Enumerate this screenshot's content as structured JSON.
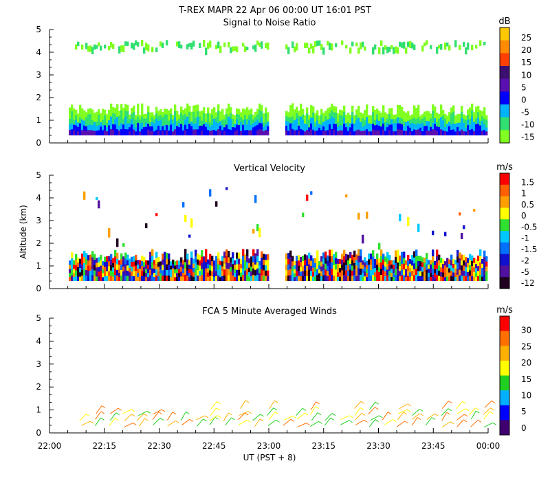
{
  "header": {
    "title": "T-REX  MAPR 22 Apr 06  00:00 UT  16:01  PST"
  },
  "chart_data": [
    {
      "type": "heatmap",
      "title": "Signal to Noise Ratio",
      "ylabel": "",
      "ylim": [
        0,
        5
      ],
      "yticks": [
        "0",
        "1",
        "2",
        "3",
        "4",
        "5"
      ],
      "colorbar": {
        "unit": "dB",
        "labels": [
          "25",
          "20",
          "15",
          "10",
          "5",
          "0",
          "-5",
          "-10",
          "-15"
        ],
        "colors": [
          "#ffc800",
          "#ff8c00",
          "#ff4000",
          "#3c1070",
          "#5a10b0",
          "#0000ff",
          "#00b4ff",
          "#30e070",
          "#80ff20"
        ]
      }
    },
    {
      "type": "heatmap",
      "title": "Vertical Velocity",
      "ylabel": "Altitude (km)",
      "ylim": [
        0,
        5
      ],
      "yticks": [
        "0",
        "1",
        "2",
        "3",
        "4",
        "5"
      ],
      "colorbar": {
        "unit": "m/s",
        "labels": [
          "1.5",
          "1",
          "0.5",
          "0",
          "-0.5",
          "-1",
          "-1.5",
          "-2",
          "-5",
          "-12"
        ],
        "colors": [
          "#ff0000",
          "#ff6000",
          "#ffa000",
          "#ffff00",
          "#30e030",
          "#00c8ff",
          "#0070ff",
          "#1010d0",
          "#5010a0",
          "#200020"
        ]
      }
    },
    {
      "type": "scatter",
      "title": "FCA 5 Minute Averaged Winds",
      "ylabel": "",
      "xlabel": "UT  (PST + 8)",
      "ylim": [
        0,
        5
      ],
      "yticks": [
        "0",
        "1",
        "2",
        "3",
        "4",
        "5"
      ],
      "xticks": [
        "22:00",
        "22:15",
        "22:30",
        "22:45",
        "23:00",
        "23:15",
        "23:30",
        "23:45",
        "00:00"
      ],
      "colorbar": {
        "unit": "m/s",
        "labels": [
          "30",
          "25",
          "20",
          "15",
          "10",
          "5",
          "0"
        ],
        "colors": [
          "#ff0000",
          "#ff7000",
          "#ffb000",
          "#ffff00",
          "#20d020",
          "#00b0ff",
          "#0000ff",
          "#400070"
        ]
      }
    }
  ]
}
